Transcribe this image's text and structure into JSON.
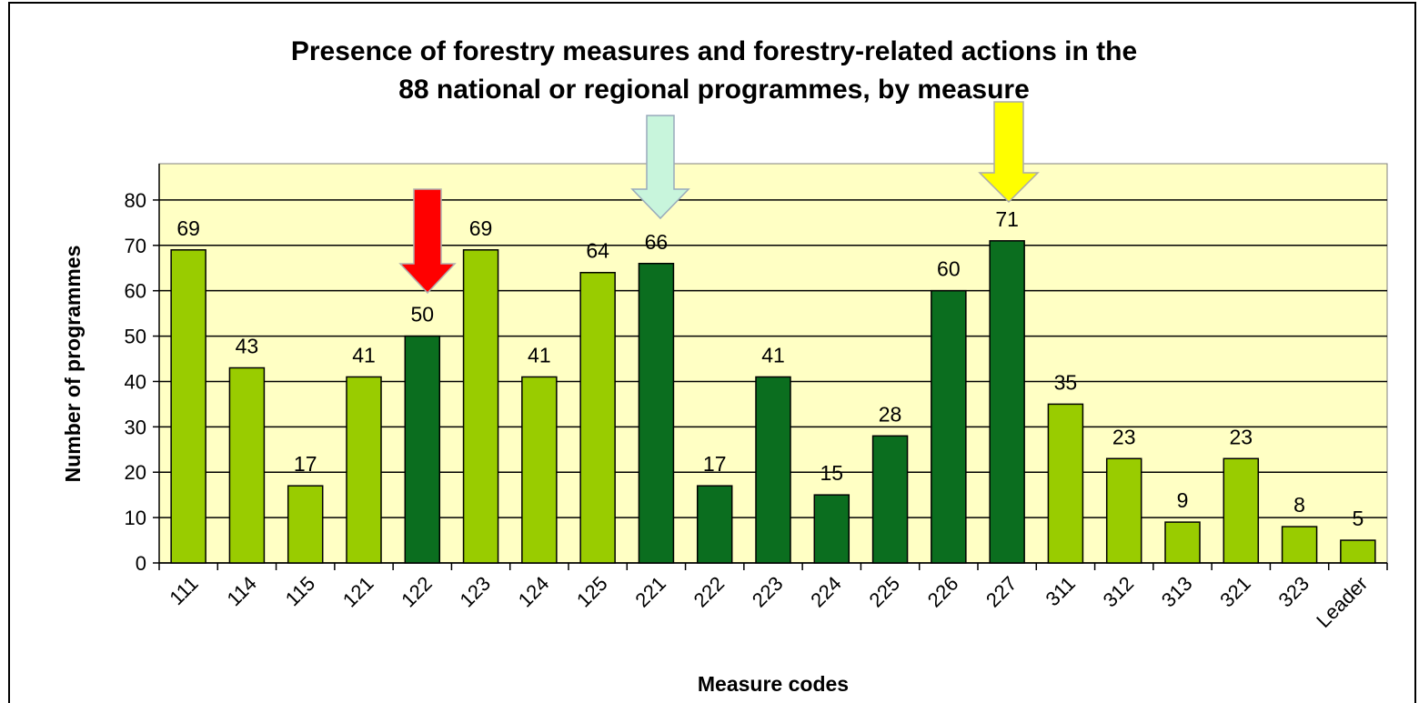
{
  "chart_data": {
    "type": "bar",
    "title": [
      "Presence of forestry measures and forestry-related actions in the",
      "88 national or regional programmes, by measure"
    ],
    "x_label": "Measure codes",
    "y_label": "Number of programmes",
    "categories": [
      "111",
      "114",
      "115",
      "121",
      "122",
      "123",
      "124",
      "125",
      "221",
      "222",
      "223",
      "224",
      "225",
      "226",
      "227",
      "311",
      "312",
      "313",
      "321",
      "323",
      "Leader"
    ],
    "values": [
      69,
      43,
      17,
      41,
      50,
      69,
      41,
      64,
      66,
      17,
      41,
      15,
      28,
      60,
      71,
      35,
      23,
      9,
      23,
      8,
      5
    ],
    "colors": [
      "#99cc00",
      "#99cc00",
      "#99cc00",
      "#99cc00",
      "#0b6e1f",
      "#99cc00",
      "#99cc00",
      "#99cc00",
      "#0b6e1f",
      "#0b6e1f",
      "#0b6e1f",
      "#0b6e1f",
      "#0b6e1f",
      "#0b6e1f",
      "#0b6e1f",
      "#99cc00",
      "#99cc00",
      "#99cc00",
      "#99cc00",
      "#99cc00",
      "#99cc00"
    ],
    "ylim": [
      0,
      88
    ],
    "yticks": [
      0,
      10,
      20,
      30,
      40,
      50,
      60,
      70,
      80
    ],
    "grid": true,
    "plot_background": "#ffffc4"
  }
}
